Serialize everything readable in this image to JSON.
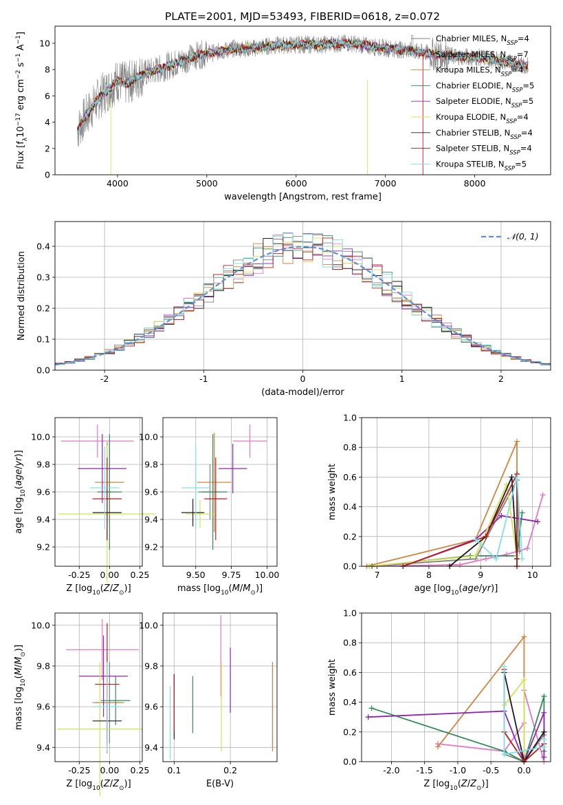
{
  "figure_title": "PLATE=2001, MJD=53493, FIBERID=0618, z=0.072",
  "series": [
    {
      "name": "Chabrier MILES, N$_{SSP}$=4",
      "color": "#808080"
    },
    {
      "name": "Salpeter MILES, N$_{SSP}$=7",
      "color": "#e377c2"
    },
    {
      "name": "Kroupa MILES, N$_{SSP}$=4",
      "color": "#cd853f"
    },
    {
      "name": "Chabrier ELODIE, N$_{SSP}$=5",
      "color": "#2e8b57"
    },
    {
      "name": "Salpeter ELODIE, N$_{SSP}$=5",
      "color": "#8e24aa"
    },
    {
      "name": "Kroupa ELODIE, N$_{SSP}$=4",
      "color": "#d4e157"
    },
    {
      "name": "Chabrier STELIB, N$_{SSP}$=4",
      "color": "#1a1a1a"
    },
    {
      "name": "Salpeter STELIB, N$_{SSP}$=4",
      "color": "#b71c1c"
    },
    {
      "name": "Kroupa STELIB, N$_{SSP}$=5",
      "color": "#80deea"
    }
  ],
  "legend_labels": [
    {
      "base": "Chabrier MILES, N",
      "sub": "SSP",
      "tail": "=4"
    },
    {
      "base": "Salpeter MILES, N",
      "sub": "SSP",
      "tail": "=7"
    },
    {
      "base": "Kroupa MILES, N",
      "sub": "SSP",
      "tail": "=4"
    },
    {
      "base": "Chabrier ELODIE, N",
      "sub": "SSP",
      "tail": "=5"
    },
    {
      "base": "Salpeter ELODIE, N",
      "sub": "SSP",
      "tail": "=5"
    },
    {
      "base": "Kroupa ELODIE, N",
      "sub": "SSP",
      "tail": "=4"
    },
    {
      "base": "Chabrier STELIB, N",
      "sub": "SSP",
      "tail": "=4"
    },
    {
      "base": "Salpeter STELIB, N",
      "sub": "SSP",
      "tail": "=4"
    },
    {
      "base": "Kroupa STELIB, N",
      "sub": "SSP",
      "tail": "=5"
    }
  ],
  "chart_data": [
    {
      "type": "line",
      "panel": "spectrum",
      "xlabel": "wavelength [Angstrom, rest frame]",
      "ylabel": "Flux [f$_\\lambda$10$^{-17}$ erg cm$^{-2}$ s$^{-1}$ A$^{-1}$]",
      "xlim": [
        3300,
        8850
      ],
      "ylim": [
        0,
        11.3
      ],
      "xticks": [
        4000,
        5000,
        6000,
        7000,
        8000
      ],
      "yticks": [
        0,
        2,
        4,
        6,
        8,
        10
      ],
      "continuum": {
        "x": [
          3550,
          3650,
          3800,
          3900,
          4000,
          4100,
          4300,
          4500,
          4700,
          4900,
          5100,
          5300,
          5500,
          5700,
          6000,
          6300,
          6600,
          6900,
          7200,
          7500,
          7800,
          8100,
          8400,
          8600
        ],
        "y": [
          3.4,
          4.5,
          5.9,
          6.5,
          7.2,
          6.9,
          7.7,
          8.1,
          8.6,
          9.1,
          9.3,
          9.6,
          9.6,
          9.8,
          9.9,
          9.9,
          10.0,
          9.7,
          9.5,
          9.2,
          9.0,
          8.9,
          8.5,
          8.3
        ]
      }
    },
    {
      "type": "line",
      "panel": "residuals",
      "xlabel": "(data-model)/error",
      "ylabel": "Normed distribution",
      "xlim": [
        -2.5,
        2.5
      ],
      "ylim": [
        0,
        0.48
      ],
      "xticks": [
        -2,
        -1,
        0,
        1,
        2
      ],
      "yticks": [
        0.0,
        0.1,
        0.2,
        0.3,
        0.4
      ],
      "legend": "$\\mathcal{N}(0,1)$",
      "gaussian": {
        "mean": 0,
        "sigma": 1
      }
    },
    {
      "type": "scatter",
      "panel": "age_vs_Z",
      "xlabel": "Z [log$_{10}$(Z/Z$_\\odot$)]",
      "ylabel": "age  [log$_{10}$(age/yr)]",
      "xlim": [
        -0.45,
        0.27
      ],
      "ylim": [
        9.06,
        10.14
      ],
      "xticks": [
        -0.25,
        0.0,
        0.25
      ],
      "yticks": [
        9.2,
        9.4,
        9.6,
        9.8,
        10.0
      ],
      "points": [
        {
          "s": 0,
          "x": -0.02,
          "y": 9.6,
          "xe": 0.04,
          "ye": 0.36
        },
        {
          "s": 1,
          "x": -0.1,
          "y": 9.97,
          "xe": 0.3,
          "ye": 0.12
        },
        {
          "s": 2,
          "x": 0.0,
          "y": 9.67,
          "xe": 0.12,
          "ye": 0.3
        },
        {
          "s": 3,
          "x": 0.0,
          "y": 9.6,
          "xe": 0.1,
          "ye": 0.42
        },
        {
          "s": 4,
          "x": -0.06,
          "y": 9.77,
          "xe": 0.2,
          "ye": 0.25
        },
        {
          "s": 5,
          "x": -0.02,
          "y": 9.44,
          "xe": 0.4,
          "ye": 0.5
        },
        {
          "s": 6,
          "x": -0.02,
          "y": 9.45,
          "xe": 0.12,
          "ye": 0.2
        },
        {
          "s": 7,
          "x": -0.02,
          "y": 9.55,
          "xe": 0.12,
          "ye": 0.3
        },
        {
          "s": 8,
          "x": -0.04,
          "y": 9.63,
          "xe": 0.12,
          "ye": 0.3
        }
      ]
    },
    {
      "type": "scatter",
      "panel": "age_vs_mass",
      "xlabel": "mass [log$_{10}$(M/M$_\\odot$)]",
      "ylabel": "",
      "xlim": [
        9.27,
        10.07
      ],
      "ylim": [
        9.06,
        10.14
      ],
      "xticks": [
        9.5,
        9.75,
        10.0
      ],
      "yticks": [
        9.2,
        9.4,
        9.6,
        9.8,
        10.0
      ],
      "points": [
        {
          "s": 0,
          "x": 9.6,
          "y": 9.6,
          "xe": 0.06,
          "ye": 0.2
        },
        {
          "s": 1,
          "x": 9.88,
          "y": 9.97,
          "xe": 0.12,
          "ye": 0.12
        },
        {
          "s": 2,
          "x": 9.63,
          "y": 9.67,
          "xe": 0.12,
          "ye": 0.36
        },
        {
          "s": 3,
          "x": 9.62,
          "y": 9.6,
          "xe": 0.1,
          "ye": 0.42
        },
        {
          "s": 4,
          "x": 9.76,
          "y": 9.77,
          "xe": 0.1,
          "ye": 0.18
        },
        {
          "s": 5,
          "x": 9.53,
          "y": 9.44,
          "xe": 0.1,
          "ye": 0.1
        },
        {
          "s": 6,
          "x": 9.48,
          "y": 9.45,
          "xe": 0.08,
          "ye": 0.1
        },
        {
          "s": 7,
          "x": 9.64,
          "y": 9.55,
          "xe": 0.08,
          "ye": 0.3
        },
        {
          "s": 8,
          "x": 9.5,
          "y": 9.63,
          "xe": 0.1,
          "ye": 0.3
        }
      ]
    },
    {
      "type": "line",
      "panel": "mass_weight_vs_age",
      "xlabel": "age  [log$_{10}$(age/yr)]",
      "ylabel": "mass weight",
      "xlim": [
        6.7,
        10.35
      ],
      "ylim": [
        0,
        1.0
      ],
      "xticks": [
        7,
        8,
        9,
        10
      ],
      "yticks": [
        0.0,
        0.2,
        0.4,
        0.6,
        0.8,
        1.0
      ],
      "lines": [
        {
          "s": 0,
          "x": [
            6.85,
            8.9,
            9.7,
            9.75
          ],
          "y": [
            0.0,
            0.05,
            0.58,
            0.1
          ]
        },
        {
          "s": 1,
          "x": [
            6.9,
            8.6,
            9.1,
            9.5,
            9.9,
            10.2
          ],
          "y": [
            0.0,
            0.01,
            0.05,
            0.08,
            0.12,
            0.48
          ]
        },
        {
          "s": 2,
          "x": [
            6.8,
            8.9,
            9.7,
            9.7
          ],
          "y": [
            0.0,
            0.18,
            0.84,
            0.0
          ]
        },
        {
          "s": 3,
          "x": [
            6.9,
            8.8,
            9.7,
            9.8
          ],
          "y": [
            0.0,
            0.07,
            0.07,
            0.36
          ]
        },
        {
          "s": 4,
          "x": [
            7.5,
            8.9,
            9.4,
            10.1
          ],
          "y": [
            0.0,
            0.18,
            0.34,
            0.3
          ]
        },
        {
          "s": 5,
          "x": [
            6.85,
            8.9,
            9.5,
            9.7
          ],
          "y": [
            0.0,
            0.07,
            0.55,
            0.07
          ]
        },
        {
          "s": 6,
          "x": [
            8.4,
            9.1,
            9.6,
            9.7
          ],
          "y": [
            0.0,
            0.2,
            0.6,
            0.05
          ]
        },
        {
          "s": 7,
          "x": [
            7.5,
            9.1,
            9.7,
            9.7
          ],
          "y": [
            0.0,
            0.2,
            0.62,
            0.0
          ]
        },
        {
          "s": 8,
          "x": [
            8.9,
            9.3,
            9.7,
            9.8
          ],
          "y": [
            0.18,
            0.05,
            0.6,
            0.05
          ]
        }
      ]
    },
    {
      "type": "scatter",
      "panel": "mass_vs_Z",
      "xlabel": "Z [log$_{10}$(Z/Z$_\\odot$)]",
      "ylabel": "mass [log$_{10}$(M/M$_\\odot$)]",
      "xlim": [
        -0.45,
        0.27
      ],
      "ylim": [
        9.33,
        10.06
      ],
      "xticks": [
        -0.25,
        0.0,
        0.25
      ],
      "yticks": [
        9.4,
        9.6,
        9.8,
        10.0
      ],
      "points": [
        {
          "s": 0,
          "x": 0.0,
          "y": 9.62,
          "xe": 0.12,
          "ye": 0.2
        },
        {
          "s": 1,
          "x": -0.06,
          "y": 9.88,
          "xe": 0.3,
          "ye": 0.15
        },
        {
          "s": 2,
          "x": -0.02,
          "y": 9.62,
          "xe": 0.12,
          "ye": 0.25
        },
        {
          "s": 3,
          "x": 0.05,
          "y": 9.63,
          "xe": 0.12,
          "ye": 0.12
        },
        {
          "s": 4,
          "x": -0.05,
          "y": 9.75,
          "xe": 0.2,
          "ye": 0.2
        },
        {
          "s": 5,
          "x": -0.08,
          "y": 9.49,
          "xe": 0.35,
          "ye": 0.33
        },
        {
          "s": 6,
          "x": -0.02,
          "y": 9.53,
          "xe": 0.12,
          "ye": 0.1
        },
        {
          "s": 7,
          "x": -0.02,
          "y": 9.71,
          "xe": 0.1,
          "ye": 0.3
        },
        {
          "s": 8,
          "x": -0.02,
          "y": 9.6,
          "xe": 0.12,
          "ye": 0.22
        }
      ]
    },
    {
      "type": "scatter",
      "panel": "mass_vs_EBV",
      "xlabel": "E(B-V)",
      "ylabel": "",
      "xlim": [
        0.08,
        0.283
      ],
      "ylim": [
        9.33,
        10.06
      ],
      "xticks": [
        0.1,
        0.2
      ],
      "yticks": [
        9.4,
        9.6,
        9.8,
        10.0
      ],
      "points": [
        {
          "s": 0,
          "x": 0.275,
          "y": 9.6,
          "ye": 0.2
        },
        {
          "s": 1,
          "x": 0.183,
          "y": 9.85,
          "ye": 0.2
        },
        {
          "s": 2,
          "x": 0.275,
          "y": 9.6,
          "ye": 0.22
        },
        {
          "s": 3,
          "x": 0.133,
          "y": 9.61,
          "ye": 0.14
        },
        {
          "s": 4,
          "x": 0.2,
          "y": 9.73,
          "ye": 0.16
        },
        {
          "s": 5,
          "x": 0.184,
          "y": 9.6,
          "ye": 0.22
        },
        {
          "s": 6,
          "x": 0.1,
          "y": 9.6,
          "ye": 0.16
        },
        {
          "s": 7,
          "x": 0.1,
          "y": 9.62,
          "ye": 0.14
        },
        {
          "s": 8,
          "x": 0.093,
          "y": 9.52,
          "ye": 0.18
        }
      ]
    },
    {
      "type": "line",
      "panel": "mass_weight_vs_Z",
      "xlabel": "Z [log$_{10}$(Z/Z$_\\odot$)]",
      "ylabel": "mass weight",
      "xlim": [
        -2.45,
        0.4
      ],
      "ylim": [
        0,
        1.0
      ],
      "xticks": [
        -2.0,
        -1.5,
        -1.0,
        -0.5,
        0.0
      ],
      "yticks": [
        0.0,
        0.2,
        0.4,
        0.6,
        0.8,
        1.0
      ],
      "lines": [
        {
          "s": 0,
          "x": [
            -0.3,
            0.0,
            0.3
          ],
          "y": [
            0.05,
            0.0,
            0.18
          ]
        },
        {
          "s": 1,
          "x": [
            -1.3,
            -0.3,
            0.0,
            0.0,
            0.3
          ],
          "y": [
            0.12,
            0.07,
            0.26,
            0.48,
            0.0
          ]
        },
        {
          "s": 2,
          "x": [
            -1.3,
            0.0,
            0.0
          ],
          "y": [
            0.1,
            0.84,
            0.0
          ]
        },
        {
          "s": 3,
          "x": [
            -2.3,
            -0.3,
            0.0,
            0.3,
            0.3
          ],
          "y": [
            0.36,
            0.07,
            0.0,
            0.44,
            0.07
          ]
        },
        {
          "s": 4,
          "x": [
            -2.35,
            -0.3,
            0.0,
            0.3,
            0.3
          ],
          "y": [
            0.3,
            0.34,
            0.0,
            0.33,
            0.03
          ]
        },
        {
          "s": 5,
          "x": [
            -0.3,
            0.0,
            0.0
          ],
          "y": [
            0.38,
            0.55,
            0.07
          ]
        },
        {
          "s": 6,
          "x": [
            -0.3,
            0.0,
            0.3
          ],
          "y": [
            0.6,
            0.0,
            0.2
          ]
        },
        {
          "s": 7,
          "x": [
            -0.3,
            -0.3,
            0.0,
            0.3
          ],
          "y": [
            0.62,
            0.2,
            0.0,
            0.12
          ]
        },
        {
          "s": 8,
          "x": [
            -0.3,
            -0.3,
            0.3,
            0.3
          ],
          "y": [
            0.64,
            0.05,
            0.1,
            0.15
          ]
        }
      ]
    }
  ]
}
